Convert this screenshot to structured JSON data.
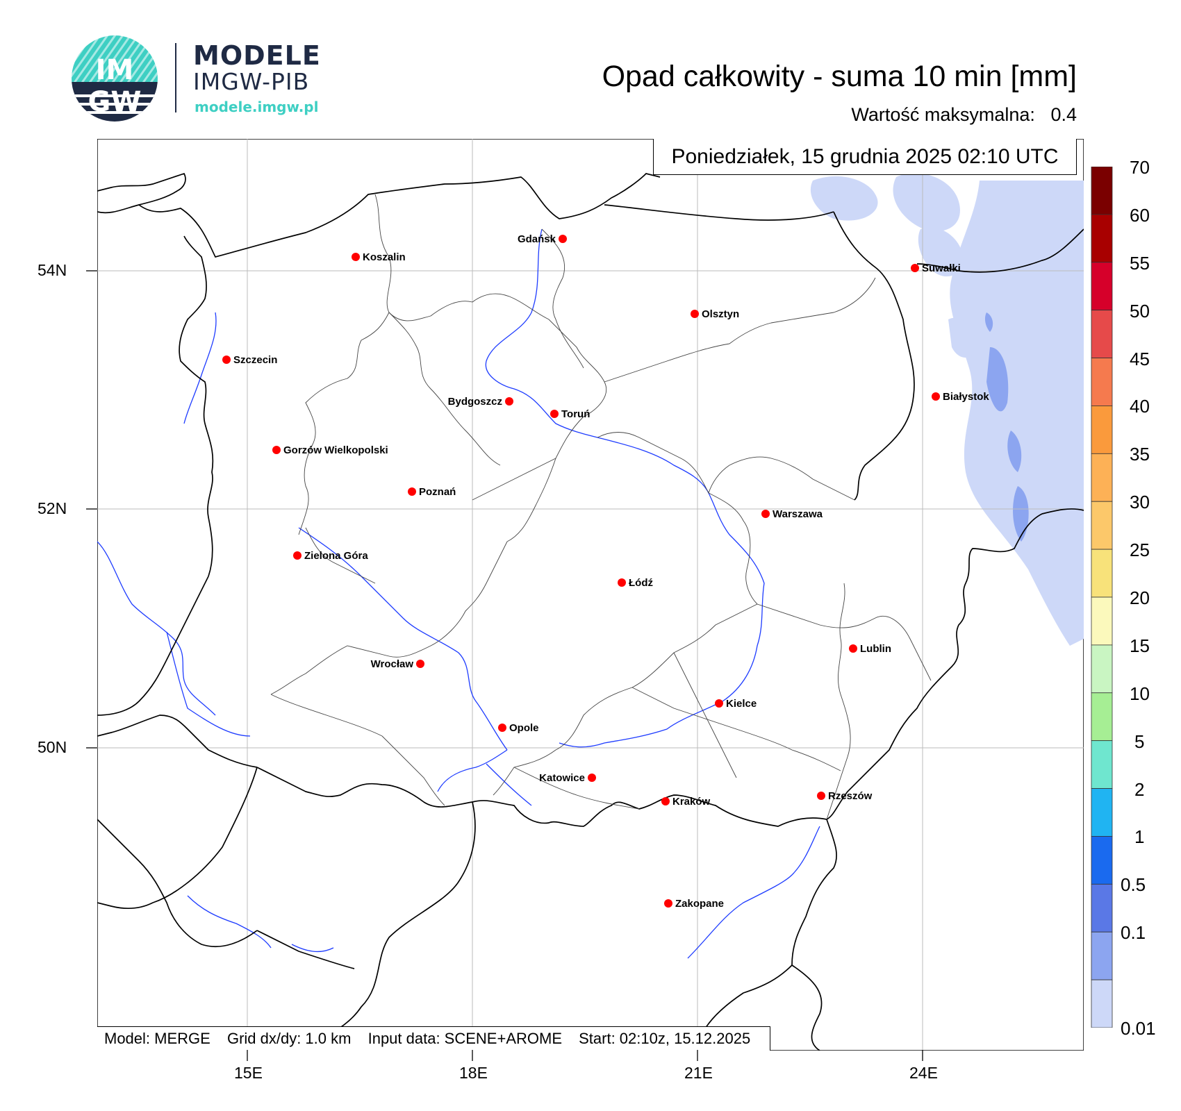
{
  "logo": {
    "badge_text_top": "IM",
    "badge_text_bottom": "GW",
    "brand": "MODELE",
    "sub": "IMGW-PIB",
    "url": "modele.imgw.pl"
  },
  "title": "Opad całkowity - suma 10 min [mm]",
  "max_value": {
    "label": "Wartość maksymalna:",
    "value": "0.4"
  },
  "datetime": "Poniedziałek, 15 grudnia 2025 02:10 UTC",
  "footer": {
    "model": "Model: MERGE",
    "grid": "Grid dx/dy: 1.0 km",
    "input": "Input data: SCENE+AROME",
    "start": "Start: 02:10z, 15.12.2025"
  },
  "axes": {
    "lat_labels": [
      "54N",
      "52N",
      "50N"
    ],
    "lon_labels": [
      "15E",
      "18E",
      "21E",
      "24E"
    ]
  },
  "cities": [
    {
      "name": "Gdańsk"
    },
    {
      "name": "Koszalin"
    },
    {
      "name": "Suwałki"
    },
    {
      "name": "Olsztyn"
    },
    {
      "name": "Szczecin"
    },
    {
      "name": "Białystok"
    },
    {
      "name": "Bydgoszcz"
    },
    {
      "name": "Toruń"
    },
    {
      "name": "Gorzów Wielkopolski"
    },
    {
      "name": "Poznań"
    },
    {
      "name": "Warszawa"
    },
    {
      "name": "Zielona Góra"
    },
    {
      "name": "Łódź"
    },
    {
      "name": "Lublin"
    },
    {
      "name": "Wrocław"
    },
    {
      "name": "Kielce"
    },
    {
      "name": "Opole"
    },
    {
      "name": "Katowice"
    },
    {
      "name": "Kraków"
    },
    {
      "name": "Rzeszów"
    },
    {
      "name": "Zakopane"
    }
  ],
  "legend": {
    "labels": [
      "70",
      "60",
      "55",
      "50",
      "45",
      "40",
      "35",
      "30",
      "25",
      "20",
      "15",
      "10",
      "5",
      "2",
      "1",
      "0.5",
      "0.1",
      "0.01"
    ],
    "colors": [
      "#7a0000",
      "#a80000",
      "#d6002a",
      "#e64a4a",
      "#f57a4e",
      "#fa9a3c",
      "#fdb156",
      "#fcc86a",
      "#f8e27a",
      "#fbf9bc",
      "#c9f5c2",
      "#a6ee94",
      "#6fe6cf",
      "#20b4f2",
      "#1a6aef",
      "#5a78e6",
      "#8ca5f0",
      "#cdd8f8"
    ]
  },
  "colors": {
    "precip_light": "#cdd8f8",
    "precip_mid": "#8ca5f0",
    "river": "#1e3cff",
    "city_dot": "#ff0000",
    "logo_teal": "#3ecfc3",
    "logo_navy": "#1f2a44"
  }
}
